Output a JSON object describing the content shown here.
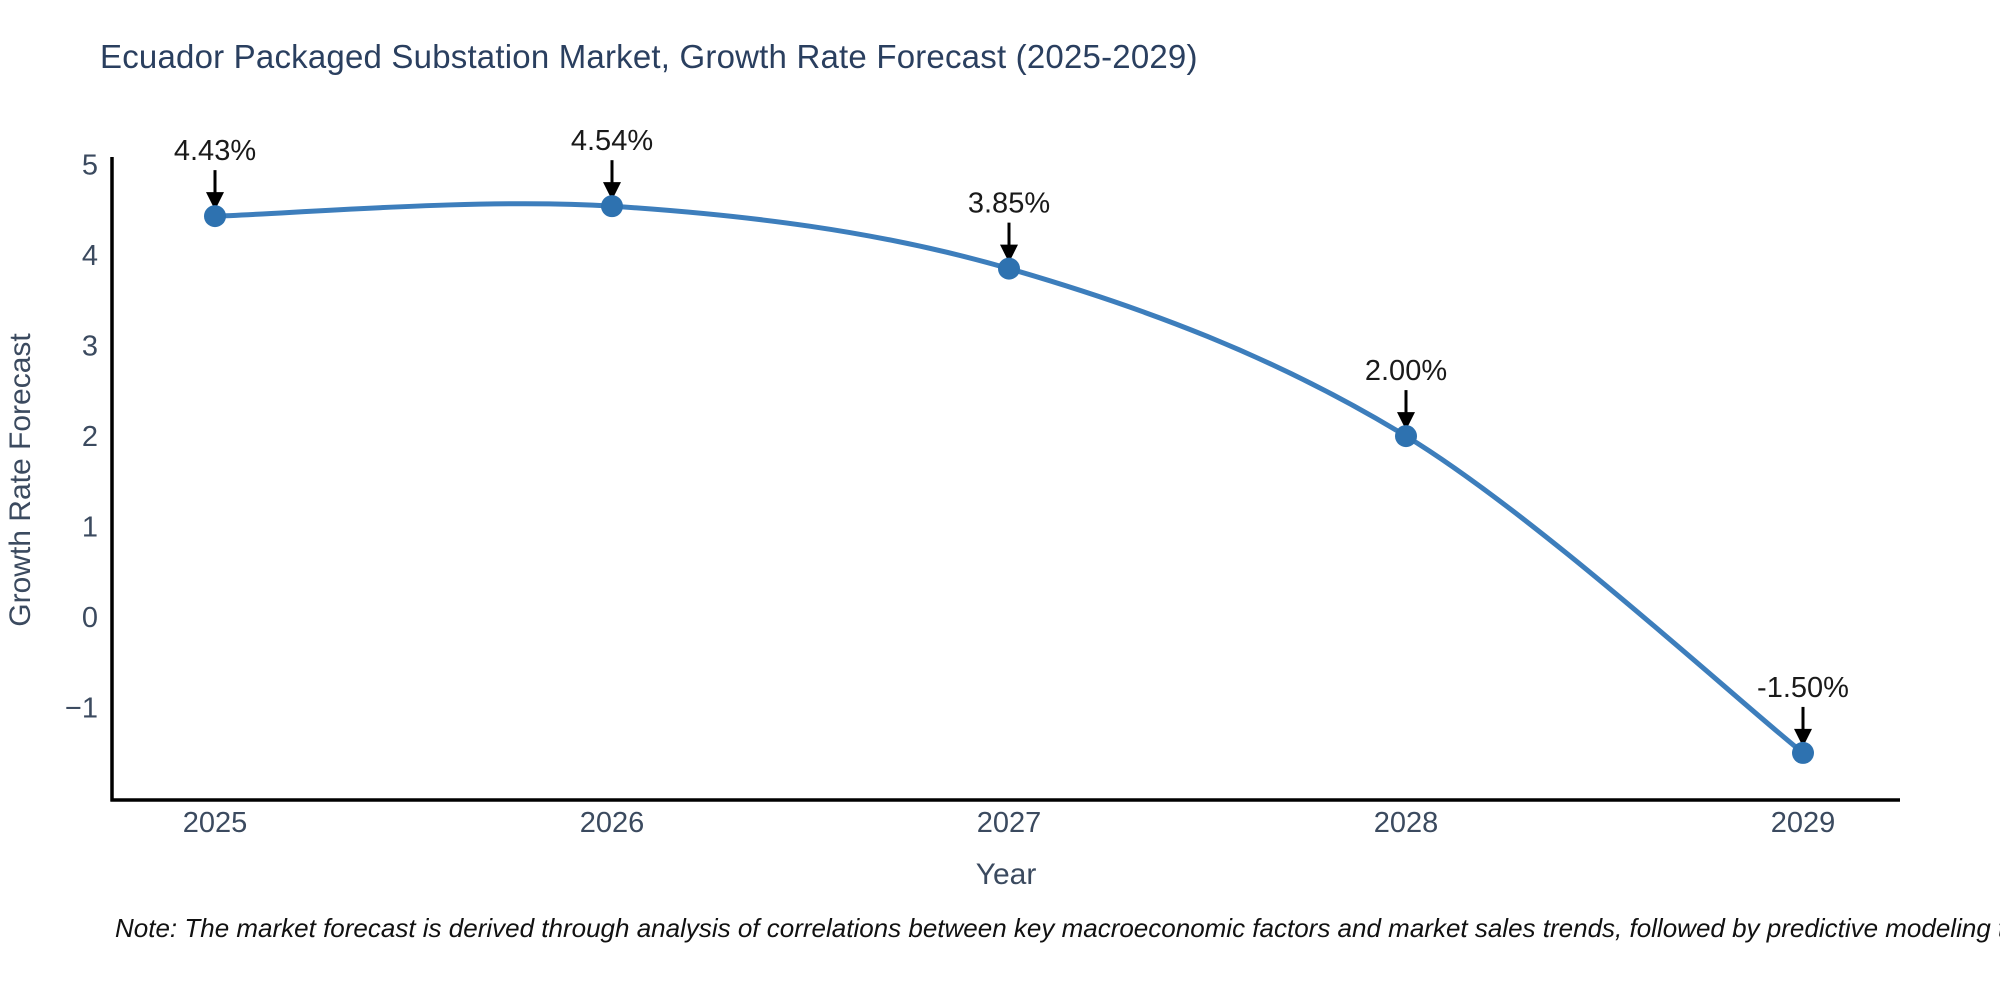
{
  "chart": {
    "title": "Ecuador Packaged Substation Market, Growth Rate Forecast (2025-2029)",
    "note": "Note: The market forecast is derived through analysis of correlations between key macroeconomic factors and market sales trends, followed by predictive modeling to project future sales",
    "x_axis": {
      "title": "Year",
      "ticks": [
        "2025",
        "2026",
        "2027",
        "2028",
        "2029"
      ]
    },
    "y_axis": {
      "title": "Growth Rate Forecast",
      "ticks": [
        -1,
        0,
        1,
        2,
        3,
        4,
        5
      ]
    },
    "colors": {
      "line": "#3d7ebc",
      "marker": "#2e72b0",
      "axis_line": "#000000",
      "tick_text": "#3b4a5f",
      "title_text": "#2a3f5f",
      "annotation_text": "#1a1a1a",
      "annotation_arrow": "#000000",
      "background": "#ffffff"
    }
  },
  "chart_data": {
    "type": "line",
    "title": "Ecuador Packaged Substation Market, Growth Rate Forecast (2025-2029)",
    "x": [
      2025,
      2026,
      2027,
      2028,
      2029
    ],
    "values": [
      4.43,
      4.54,
      3.85,
      2.0,
      -1.5
    ],
    "point_labels": [
      "4.43%",
      "4.54%",
      "3.85%",
      "2.00%",
      "-1.50%"
    ],
    "xlabel": "Year",
    "ylabel": "Growth Rate Forecast",
    "ylim": [
      -2.02,
      5.05
    ],
    "line_shape": "spline",
    "grid": false,
    "legend": false,
    "annotations": "value labels with downward arrows above each point"
  }
}
